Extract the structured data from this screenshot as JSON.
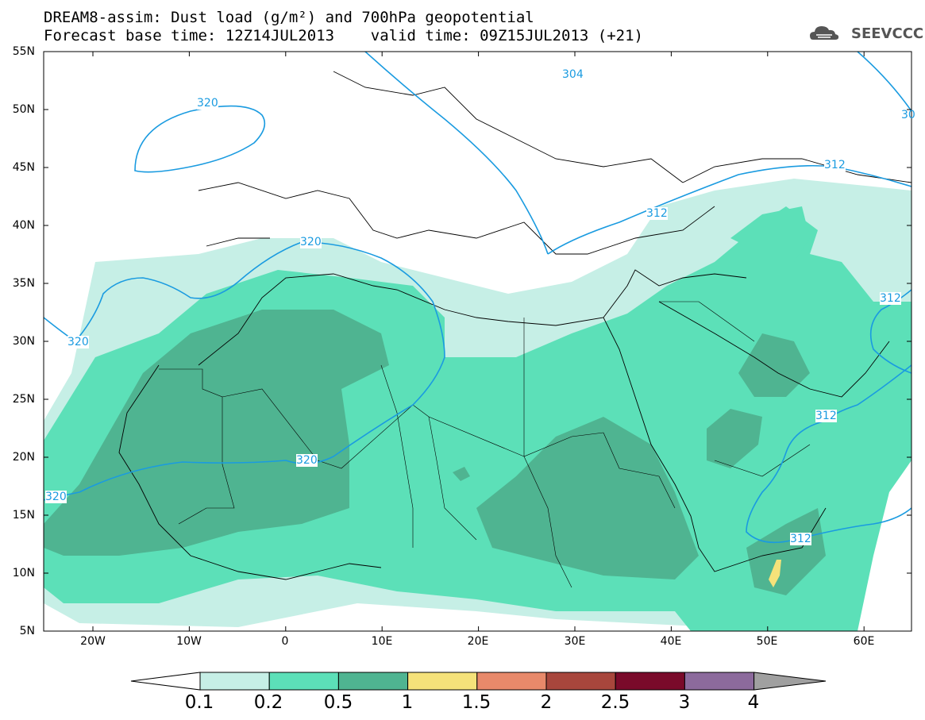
{
  "header": {
    "line1": "DREAM8-assim: Dust load (g/m²) and 700hPa geopotential",
    "line2": "Forecast base time: 12Z14JUL2013    valid time: 09Z15JUL2013 (+21)"
  },
  "logo": {
    "text": "SEEVCCC",
    "icon": "cloud-icon"
  },
  "map": {
    "lat_labels": [
      "55N",
      "50N",
      "45N",
      "40N",
      "35N",
      "30N",
      "25N",
      "20N",
      "15N",
      "10N",
      "5N"
    ],
    "lon_labels": [
      "20W",
      "10W",
      "0",
      "10E",
      "20E",
      "30E",
      "40E",
      "50E",
      "60E"
    ],
    "contour_labels": [
      "320",
      "320",
      "320",
      "320",
      "320",
      "304",
      "312",
      "312",
      "312",
      "312",
      "312",
      "30"
    ]
  },
  "colorbar": {
    "labels": [
      "0.1",
      "0.2",
      "0.5",
      "1",
      "1.5",
      "2",
      "2.5",
      "3",
      "4"
    ],
    "colors": [
      "#c6efe6",
      "#5ce0b8",
      "#4fb491",
      "#f5e27a",
      "#e8896a",
      "#a8463c",
      "#7a0a2a",
      "#8c6a9c"
    ],
    "above_color": "#a0a0a0"
  }
}
